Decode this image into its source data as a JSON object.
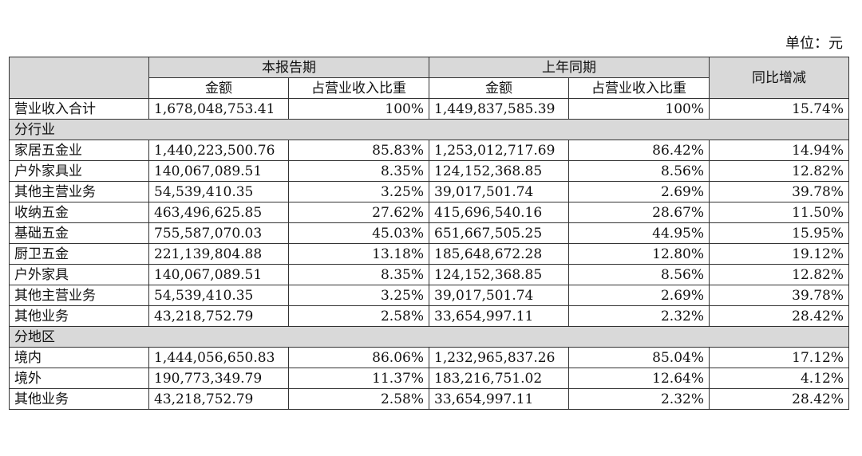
{
  "unit_label": "单位：元",
  "header": {
    "current_period": "本报告期",
    "prior_period": "上年同期",
    "yoy_change": "同比增减",
    "amount": "金额",
    "share": "占营业收入比重"
  },
  "total": {
    "label": "营业收入合计",
    "cur_amount": "1,678,048,753.41",
    "cur_share": "100%",
    "prev_amount": "1,449,837,585.39",
    "prev_share": "100%",
    "yoy": "15.74%"
  },
  "sections": {
    "industry": {
      "title": "分行业",
      "rows": [
        {
          "label": "家居五金业",
          "cur_amount": "1,440,223,500.76",
          "cur_share": "85.83%",
          "prev_amount": "1,253,012,717.69",
          "prev_share": "86.42%",
          "yoy": "14.94%"
        },
        {
          "label": "户外家具业",
          "cur_amount": "140,067,089.51",
          "cur_share": "8.35%",
          "prev_amount": "124,152,368.85",
          "prev_share": "8.56%",
          "yoy": "12.82%"
        },
        {
          "label": "其他主营业务",
          "cur_amount": "54,539,410.35",
          "cur_share": "3.25%",
          "prev_amount": "39,017,501.74",
          "prev_share": "2.69%",
          "yoy": "39.78%"
        },
        {
          "label": "收纳五金",
          "cur_amount": "463,496,625.85",
          "cur_share": "27.62%",
          "prev_amount": "415,696,540.16",
          "prev_share": "28.67%",
          "yoy": "11.50%"
        },
        {
          "label": "基础五金",
          "cur_amount": "755,587,070.03",
          "cur_share": "45.03%",
          "prev_amount": "651,667,505.25",
          "prev_share": "44.95%",
          "yoy": "15.95%"
        },
        {
          "label": "厨卫五金",
          "cur_amount": "221,139,804.88",
          "cur_share": "13.18%",
          "prev_amount": "185,648,672.28",
          "prev_share": "12.80%",
          "yoy": "19.12%"
        },
        {
          "label": "户外家具",
          "cur_amount": "140,067,089.51",
          "cur_share": "8.35%",
          "prev_amount": "124,152,368.85",
          "prev_share": "8.56%",
          "yoy": "12.82%"
        },
        {
          "label": "其他主营业务",
          "cur_amount": "54,539,410.35",
          "cur_share": "3.25%",
          "prev_amount": "39,017,501.74",
          "prev_share": "2.69%",
          "yoy": "39.78%"
        },
        {
          "label": "其他业务",
          "cur_amount": "43,218,752.79",
          "cur_share": "2.58%",
          "prev_amount": "33,654,997.11",
          "prev_share": "2.32%",
          "yoy": "28.42%"
        }
      ]
    },
    "region": {
      "title": "分地区",
      "rows": [
        {
          "label": "境内",
          "cur_amount": "1,444,056,650.83",
          "cur_share": "86.06%",
          "prev_amount": "1,232,965,837.26",
          "prev_share": "85.04%",
          "yoy": "17.12%"
        },
        {
          "label": "境外",
          "cur_amount": "190,773,349.79",
          "cur_share": "11.37%",
          "prev_amount": "183,216,751.02",
          "prev_share": "12.64%",
          "yoy": "4.12%"
        },
        {
          "label": "其他业务",
          "cur_amount": "43,218,752.79",
          "cur_share": "2.58%",
          "prev_amount": "33,654,997.11",
          "prev_share": "2.32%",
          "yoy": "28.42%"
        }
      ]
    }
  },
  "colors": {
    "header_bg": "#d9d9d9",
    "border": "#333333",
    "text": "#111111"
  }
}
